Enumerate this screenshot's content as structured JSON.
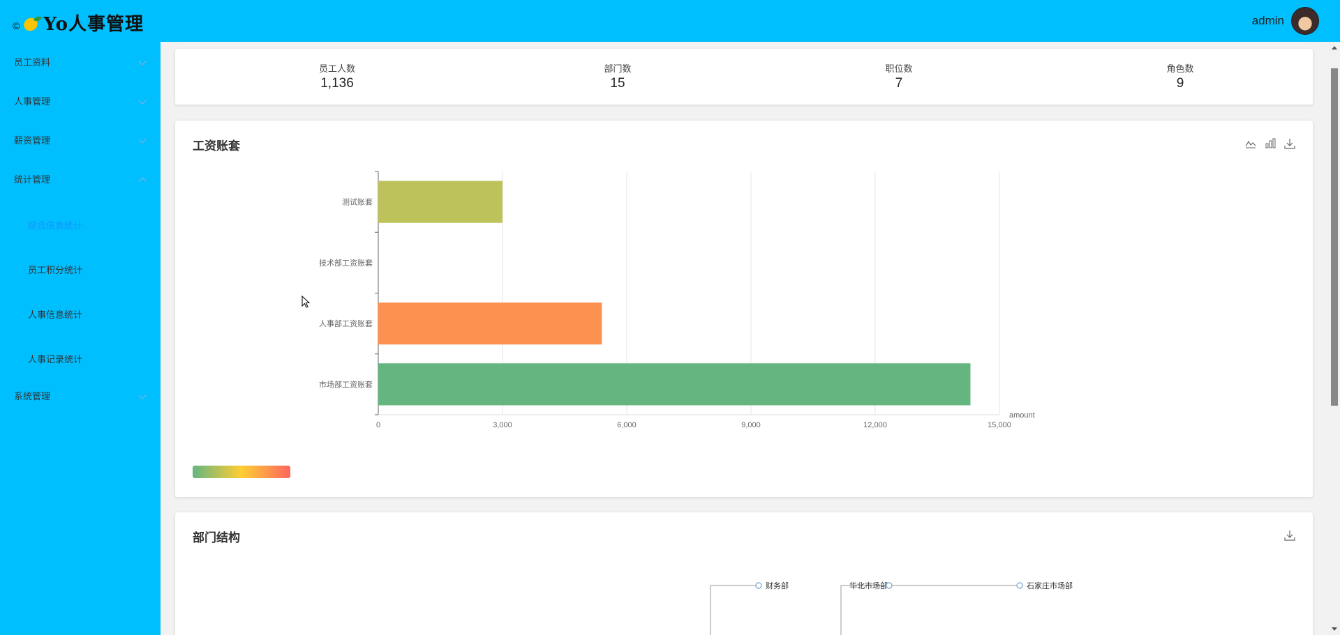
{
  "app": {
    "copyright": "©",
    "title": "Yo人事管理"
  },
  "user": {
    "name": "admin"
  },
  "sidebar": {
    "menus": [
      {
        "label": "员工资料"
      },
      {
        "label": "人事管理"
      },
      {
        "label": "薪资管理"
      },
      {
        "label": "统计管理"
      },
      {
        "label": "系统管理"
      }
    ],
    "sub_items": [
      {
        "label": "综合信息统计",
        "active": true
      },
      {
        "label": "员工积分统计"
      },
      {
        "label": "人事信息统计"
      },
      {
        "label": "人事记录统计"
      }
    ]
  },
  "stats": [
    {
      "title": "员工人数",
      "value": "1,136"
    },
    {
      "title": "部门数",
      "value": "15"
    },
    {
      "title": "职位数",
      "value": "7"
    },
    {
      "title": "角色数",
      "value": "9"
    }
  ],
  "salary_chart": {
    "title": "工资账套",
    "toolbox": [
      "line-chart-icon",
      "bar-chart-icon",
      "download-icon"
    ]
  },
  "chart_data": {
    "type": "bar",
    "orientation": "horizontal",
    "categories": [
      "测试账套",
      "技术部工资账套",
      "人事部工资账套",
      "市场部工资账套"
    ],
    "values": [
      3000,
      0,
      5400,
      14300
    ],
    "bar_colors": [
      "#bdc35a",
      "#ffce34",
      "#fd914f",
      "#65b581"
    ],
    "xlabel": "amount",
    "xlim": [
      0,
      15000
    ],
    "xticks": [
      "0",
      "3,000",
      "6,000",
      "9,000",
      "12,000",
      "15,000"
    ],
    "grid": true,
    "visual_map": {
      "colors": [
        "#65b581",
        "#ffce34",
        "#fd665f"
      ]
    }
  },
  "dept_chart": {
    "title": "部门结构",
    "nodes": [
      "财务部",
      "华北市场部",
      "石家庄市场部"
    ]
  },
  "colors": {
    "sidebar": "#00bfff",
    "header": "#00bfff",
    "active": "#1890ff"
  }
}
